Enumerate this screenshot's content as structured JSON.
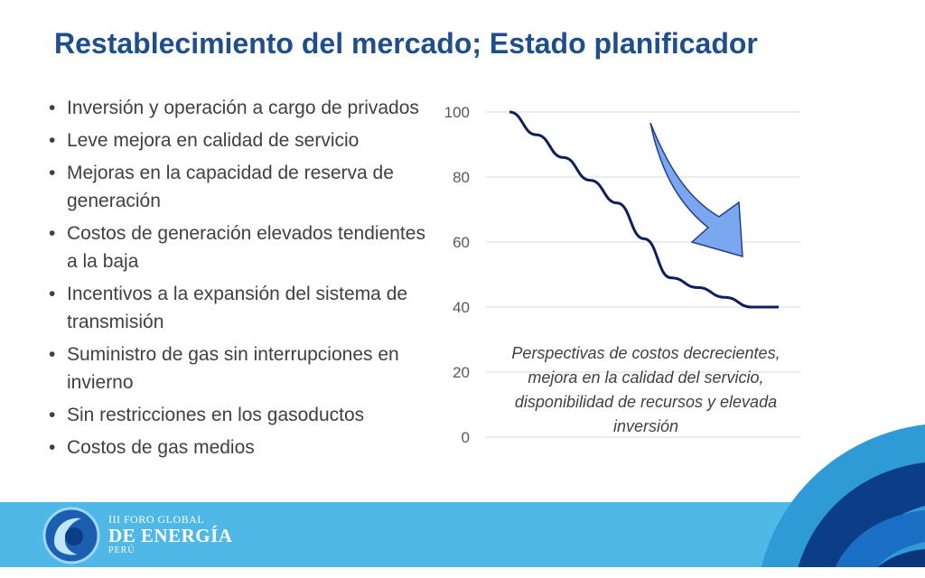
{
  "slide": {
    "title": "Restablecimiento del mercado; Estado planificador",
    "bullets": [
      "Inversión y operación a cargo de privados",
      "Leve mejora en calidad de servicio",
      "Mejoras en la capacidad de reserva de generación",
      "Costos de generación elevados tendientes a la baja",
      "Incentivos a la expansión del sistema de transmisión",
      "Suministro de gas sin interrupciones en invierno",
      "Sin restricciones en los gasoductos",
      "Costos de gas medios"
    ]
  },
  "chart_data": {
    "type": "line",
    "title": "",
    "xlabel": "",
    "ylabel": "",
    "ylim": [
      0,
      100
    ],
    "yticks": [
      "0",
      "20",
      "40",
      "60",
      "80",
      "100"
    ],
    "grid": true,
    "x": [
      0,
      1,
      2,
      3,
      4,
      5,
      6,
      7,
      8,
      9,
      10
    ],
    "series": [
      {
        "values": [
          100,
          93,
          86,
          79,
          72,
          61,
          49,
          46,
          43,
          40,
          40
        ]
      }
    ],
    "annotation": "Perspectivas de costos decrecientes, mejora en la calidad del servicio, disponibilidad de recursos y elevada inversión",
    "line_color": "#0d1f5c",
    "arrow_color": "#7aa7f0"
  },
  "footer": {
    "line1": "III FORO GLOBAL",
    "line2": "DE ENERGÍA",
    "line3": "PERÚ",
    "band_color": "#4fb8e6"
  },
  "icons": {
    "logo": "globe-ring-logo-icon",
    "arrow": "down-arrow-icon"
  }
}
